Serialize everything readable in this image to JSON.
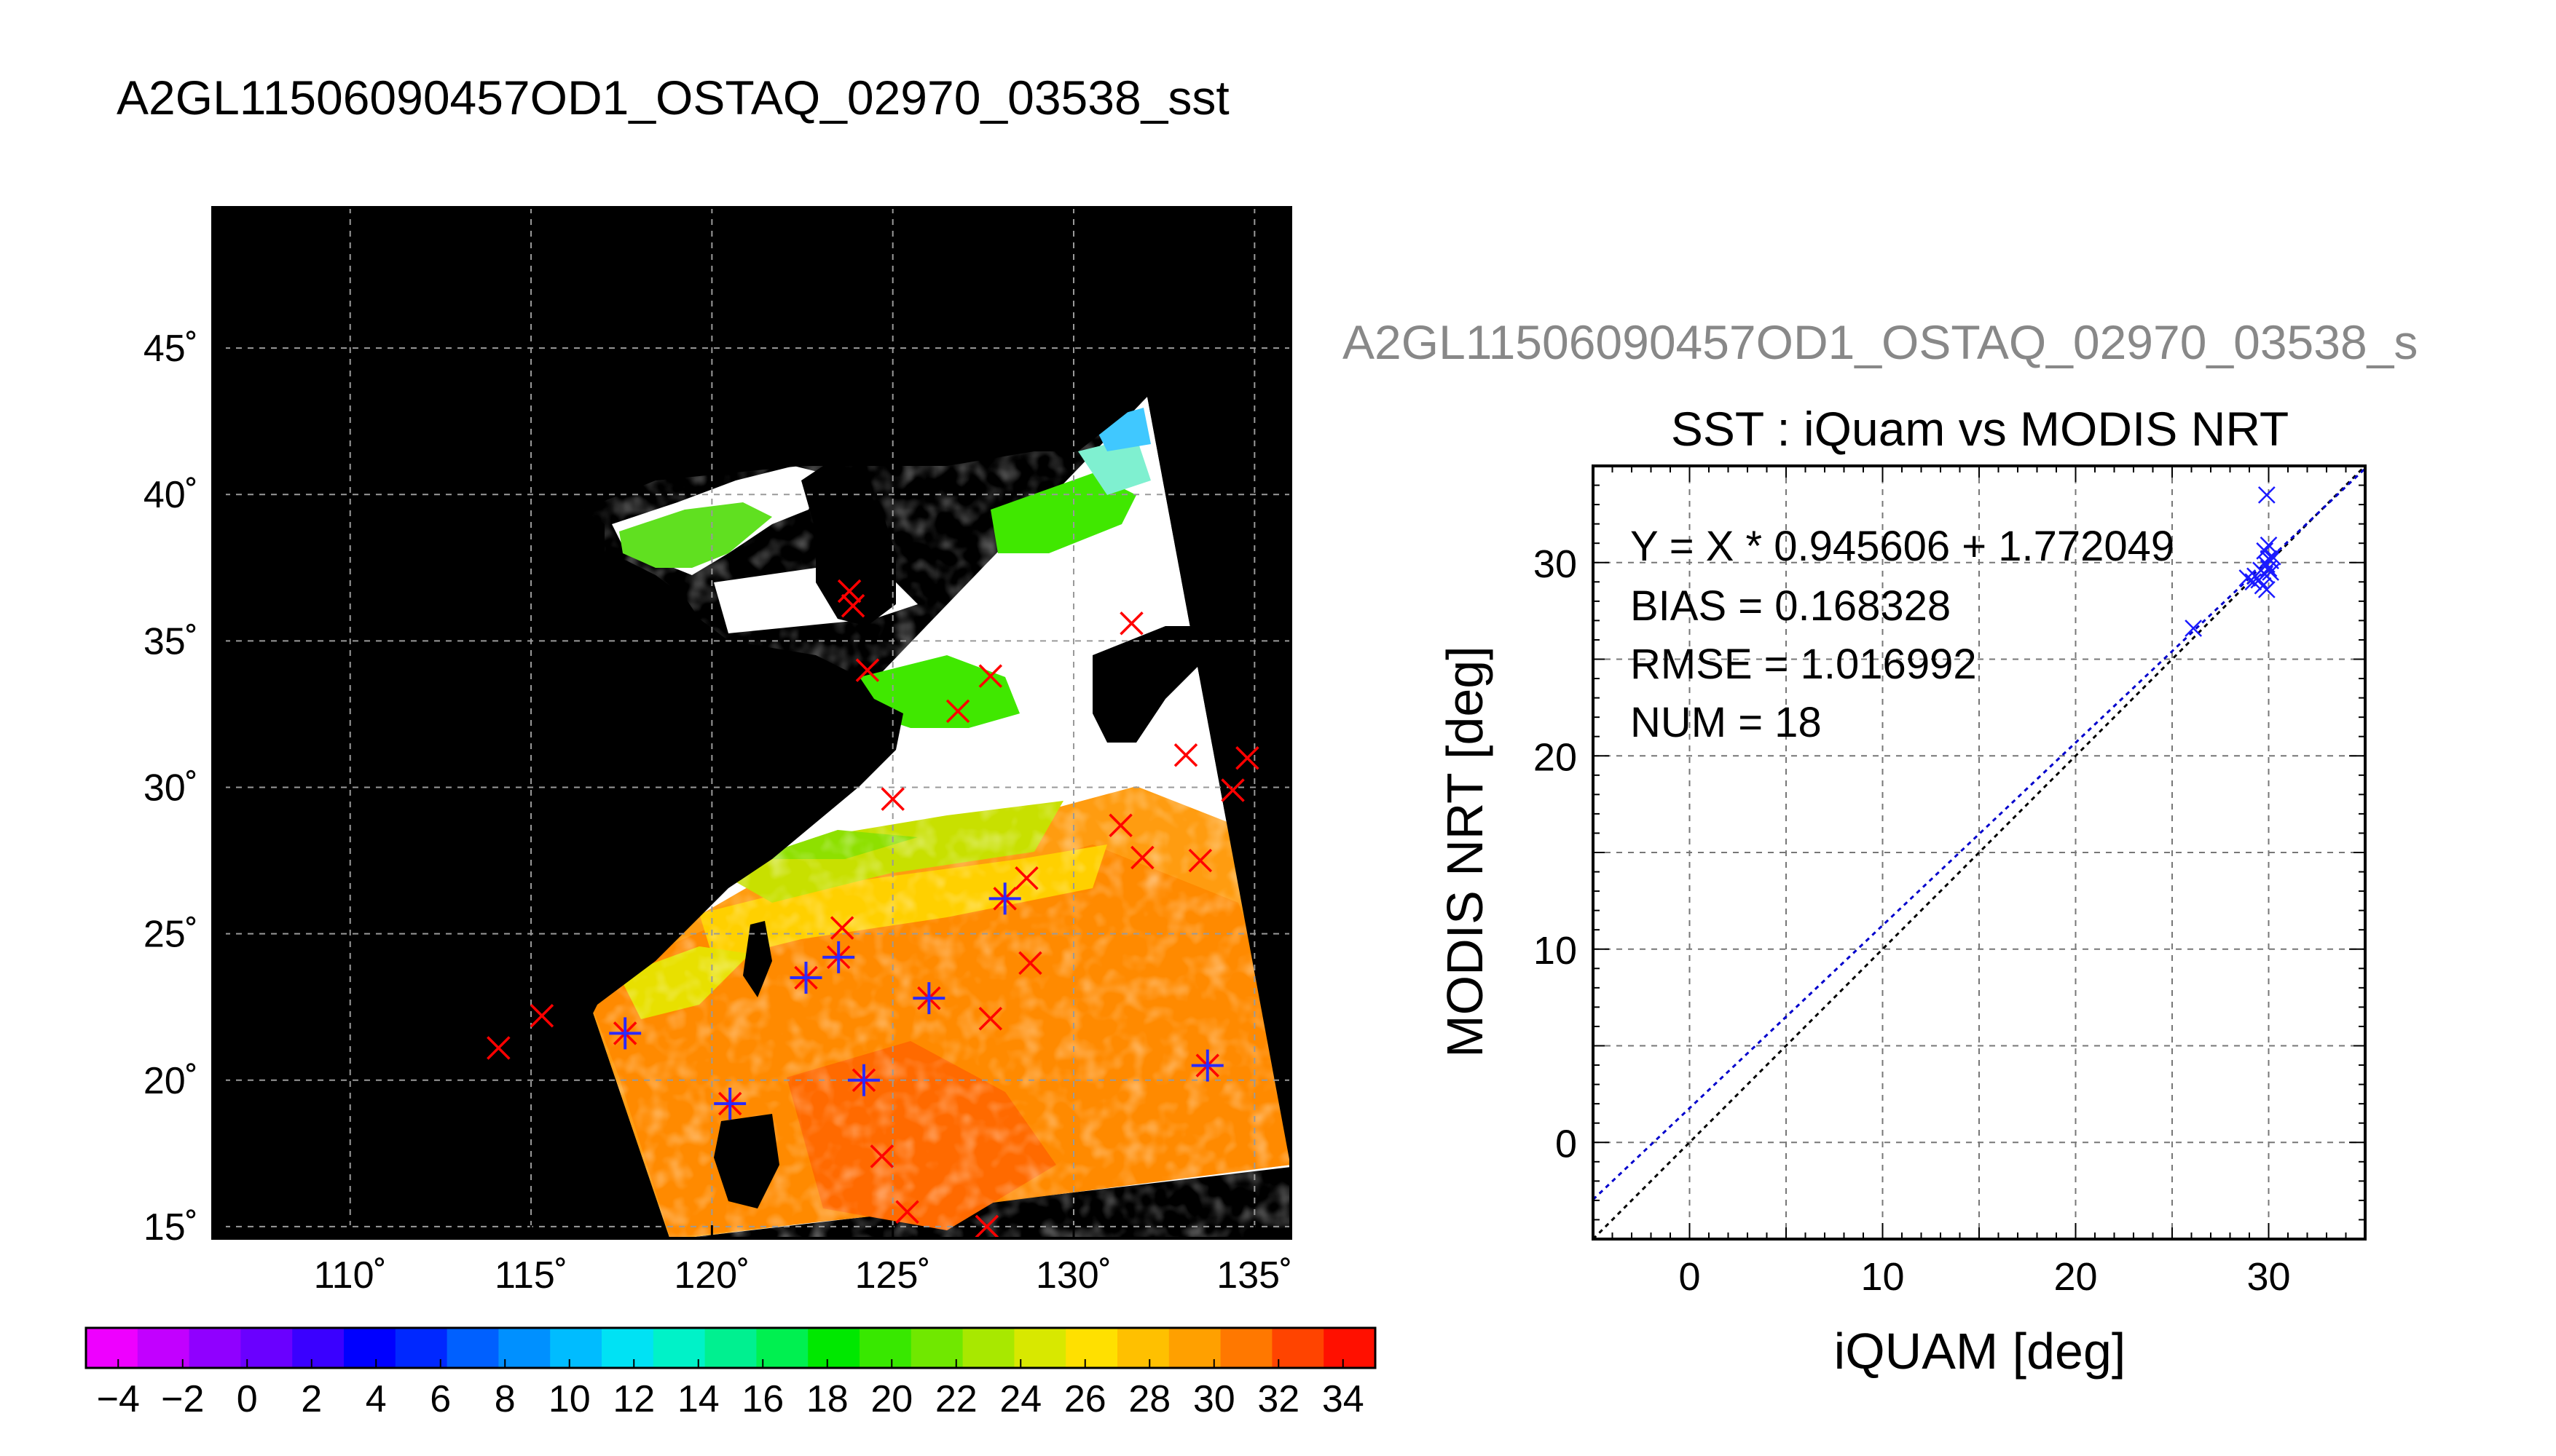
{
  "title": "A2GL11506090457OD1_OSTAQ_02970_03538_sst",
  "map_panel": {
    "lon_ticks": [
      "110˚",
      "115˚",
      "120˚",
      "125˚",
      "130˚",
      "135˚"
    ],
    "lat_ticks": [
      "45˚",
      "40˚",
      "35˚",
      "30˚",
      "25˚",
      "20˚",
      "15˚"
    ],
    "lon_range": [
      106.2,
      136.0
    ],
    "lat_range": [
      14.6,
      49.8
    ],
    "background_color": "#000000",
    "colorbar": {
      "min": -5,
      "max": 35,
      "tick_labels": [
        "−4",
        "−2",
        "0",
        "2",
        "4",
        "6",
        "8",
        "10",
        "12",
        "14",
        "16",
        "18",
        "20",
        "22",
        "24",
        "26",
        "28",
        "30",
        "32",
        "34"
      ],
      "colors": [
        "#ee00ff",
        "#c200ff",
        "#9000ff",
        "#6a00ff",
        "#3a00ff",
        "#0000ff",
        "#0028ff",
        "#0060ff",
        "#0090ff",
        "#00bcff",
        "#00e2f4",
        "#00f2c8",
        "#00f090",
        "#00f050",
        "#00e800",
        "#38e800",
        "#70e800",
        "#a8e800",
        "#d8e800",
        "#ffe000",
        "#ffc000",
        "#ffa000",
        "#ff7800",
        "#ff4400",
        "#ff1000"
      ]
    },
    "red_markers": [
      [
        114.1,
        21.1
      ],
      [
        115.3,
        22.2
      ],
      [
        117.6,
        21.6
      ],
      [
        120.5,
        19.2
      ],
      [
        122.6,
        23.5
      ],
      [
        123.5,
        24.2
      ],
      [
        123.6,
        25.2
      ],
      [
        123.8,
        36.7
      ],
      [
        123.9,
        36.2
      ],
      [
        124.3,
        34.0
      ],
      [
        124.2,
        20.0
      ],
      [
        124.7,
        17.4
      ],
      [
        125.0,
        29.6
      ],
      [
        125.4,
        15.5
      ],
      [
        126.0,
        22.8
      ],
      [
        126.8,
        32.6
      ],
      [
        127.6,
        15.0
      ],
      [
        127.7,
        22.1
      ],
      [
        127.7,
        33.8
      ],
      [
        128.1,
        26.2
      ],
      [
        128.8,
        24.0
      ],
      [
        128.7,
        26.9
      ],
      [
        131.3,
        28.7
      ],
      [
        131.6,
        35.6
      ],
      [
        131.9,
        27.6
      ],
      [
        133.1,
        31.1
      ],
      [
        133.5,
        27.5
      ],
      [
        133.7,
        20.5
      ],
      [
        134.4,
        29.9
      ],
      [
        134.8,
        31.0
      ]
    ],
    "blue_markers": [
      [
        117.6,
        21.6
      ],
      [
        120.5,
        19.2
      ],
      [
        122.6,
        23.5
      ],
      [
        123.5,
        24.2
      ],
      [
        124.2,
        20.0
      ],
      [
        126.0,
        22.8
      ],
      [
        128.1,
        26.2
      ],
      [
        133.7,
        20.5
      ]
    ]
  },
  "scatter_panel": {
    "header": "A2GL11506090457OD1_OSTAQ_02970_03538_s",
    "stats": [
      "Y = X * 0.945606 + 1.772049",
      "BIAS = 0.168328",
      "RMSE = 1.016992",
      "NUM = 18"
    ]
  },
  "chart_data": {
    "type": "scatter",
    "title": "SST : iQuam vs MODIS NRT",
    "xlabel": "iQUAM [deg]",
    "ylabel": "MODIS NRT [deg]",
    "xlim": [
      -5,
      35
    ],
    "ylim": [
      -5,
      35
    ],
    "xticks": [
      0,
      10,
      20,
      30
    ],
    "yticks": [
      0,
      10,
      20,
      30
    ],
    "grid": true,
    "fit": {
      "slope": 0.945606,
      "intercept": 1.772049
    },
    "identity_line": true,
    "x": [
      26.1,
      28.9,
      29.2,
      29.3,
      29.5,
      29.6,
      29.7,
      29.8,
      29.9,
      29.9,
      30.0,
      30.0,
      30.1,
      30.1,
      29.8,
      30.2,
      29.9,
      30.0
    ],
    "y": [
      26.6,
      29.2,
      29.0,
      29.3,
      29.1,
      29.6,
      28.8,
      29.4,
      28.6,
      33.5,
      30.2,
      29.7,
      29.5,
      30.1,
      30.6,
      30.3,
      29.9,
      30.9
    ],
    "marker_color": "#1a1aff",
    "fit_color": "#0000cc",
    "identity_color": "#000000"
  }
}
